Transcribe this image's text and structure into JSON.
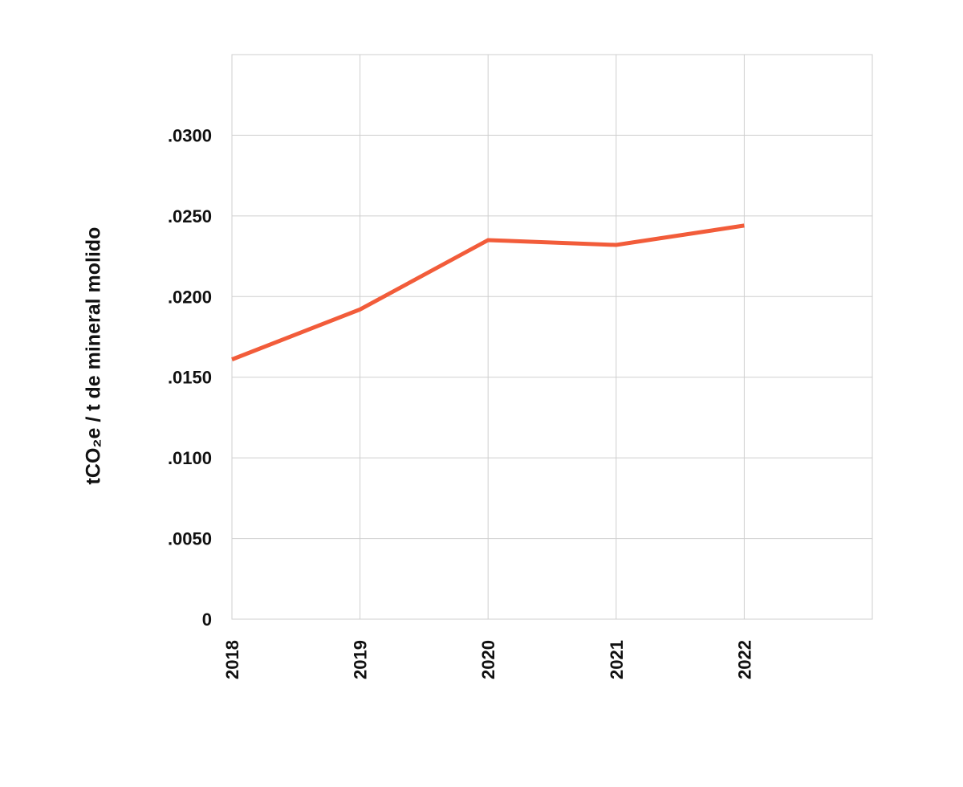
{
  "chart_data": {
    "type": "line",
    "y_label": "tCO₂e / t de mineral molido",
    "x": [
      2018,
      2019,
      2020,
      2021,
      2022
    ],
    "series": [
      {
        "color": "#f25c3a",
        "values": [
          0.0161,
          0.0192,
          0.0235,
          0.0232,
          0.0244
        ]
      }
    ],
    "xlim": [
      2018,
      2023
    ],
    "xticks": [
      2018,
      2019,
      2020,
      2021,
      2022
    ],
    "ylim": [
      0,
      0.035
    ],
    "yticks": [
      0,
      {
        "value": 0.005,
        "label": ".0050"
      },
      {
        "value": 0.01,
        "label": ".0100"
      },
      {
        "value": 0.015,
        "label": ".0150"
      },
      {
        "value": 0.02,
        "label": ".0200"
      },
      {
        "value": 0.025,
        "label": ".0250"
      },
      {
        "value": 0.03,
        "label": ".0300"
      }
    ],
    "grid": true
  }
}
